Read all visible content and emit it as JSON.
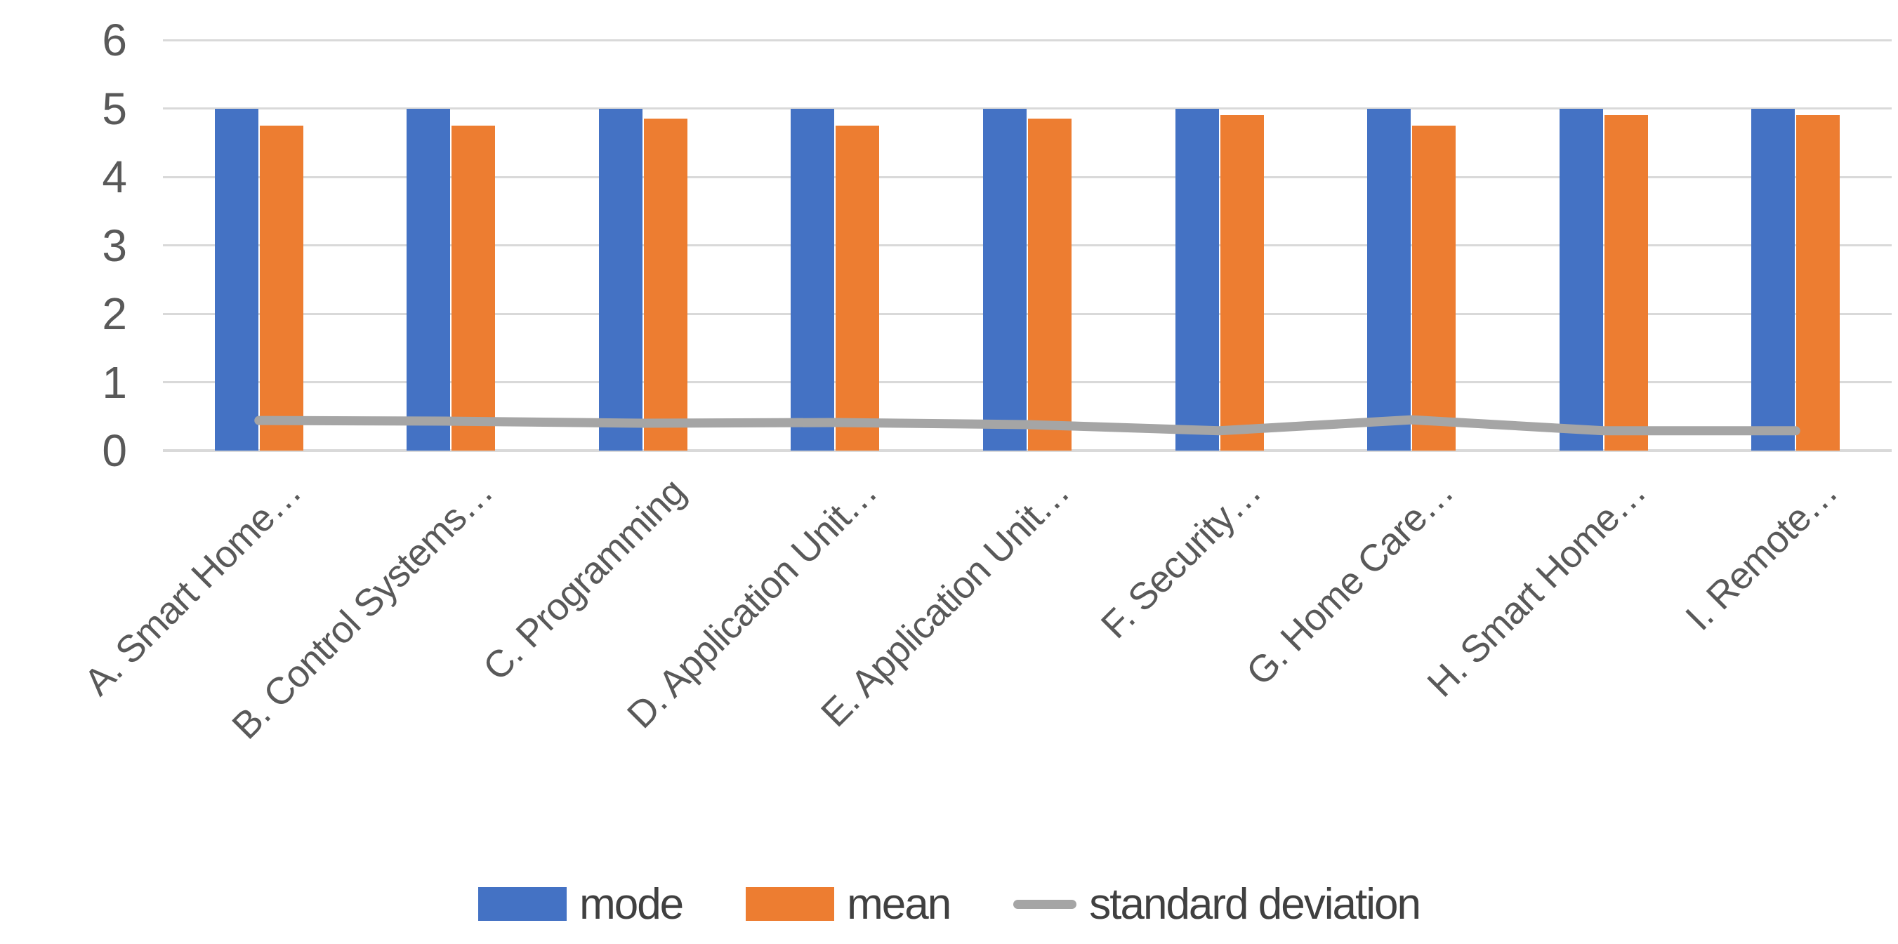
{
  "chart_data": {
    "type": "bar",
    "title": "",
    "categories": [
      "A. Smart Home…",
      "B. Control Systems…",
      "C. Programming",
      "D. Application Unit…",
      "E. Application Unit…",
      "F. Security…",
      "G. Home Care…",
      "H. Smart Home…",
      "I. Remote…"
    ],
    "series": [
      {
        "name": "mode",
        "type": "bar",
        "color": "#4472C4",
        "values": [
          5,
          5,
          5,
          5,
          5,
          5,
          5,
          5,
          5
        ]
      },
      {
        "name": "mean",
        "type": "bar",
        "color": "#ED7D31",
        "values": [
          4.75,
          4.75,
          4.85,
          4.75,
          4.85,
          4.9,
          4.75,
          4.9,
          4.9
        ]
      },
      {
        "name": "standard deviation",
        "type": "line",
        "color": "#A5A5A5",
        "values": [
          0.44,
          0.43,
          0.4,
          0.41,
          0.38,
          0.29,
          0.45,
          0.29,
          0.29
        ]
      }
    ],
    "axis": {
      "yticks": [
        0,
        1,
        2,
        3,
        4,
        5,
        6
      ],
      "ylim": [
        0,
        6
      ],
      "tick_color": "#595959",
      "category_label_color": "#595959",
      "gridline_color": "#D9D9D9"
    },
    "grid": true,
    "legend_position": "bottom",
    "legend_text_color": "#404040",
    "background": "#FFFFFF"
  }
}
